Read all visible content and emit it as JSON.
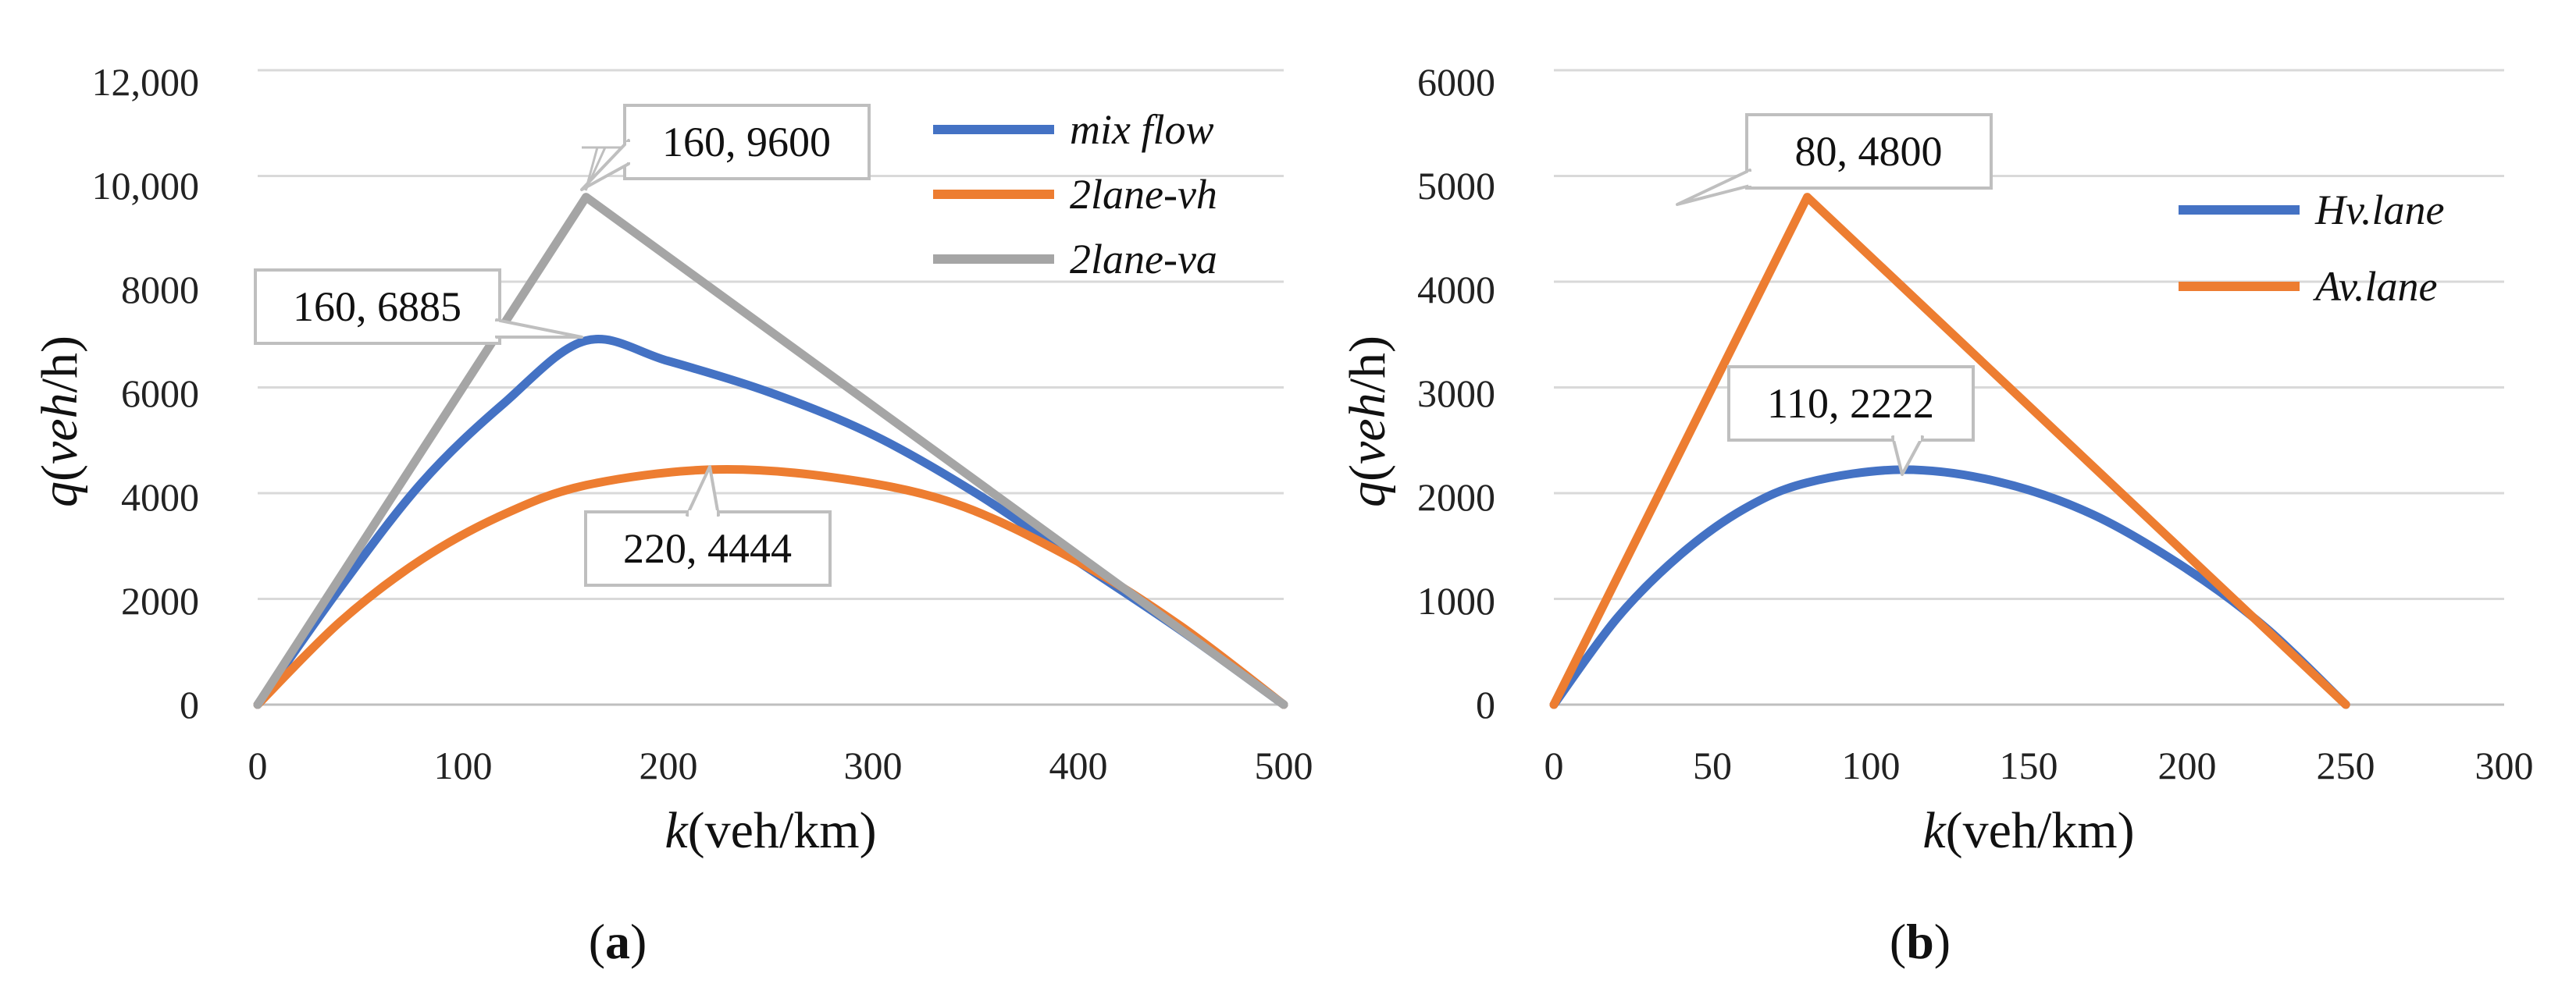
{
  "chart_data": [
    {
      "type": "line",
      "panel_label": "a",
      "xlabel": {
        "var": "k",
        "unit": "(veh/km)"
      },
      "ylabel": {
        "var": "q",
        "open": "(",
        "italic_part": "veh",
        "unit": "/h)"
      },
      "xlim": [
        0,
        500
      ],
      "ylim": [
        0,
        12000
      ],
      "x_ticks": [
        0,
        100,
        200,
        300,
        400,
        500
      ],
      "y_ticks": [
        0,
        2000,
        4000,
        6000,
        8000,
        10000,
        12000
      ],
      "x_tick_labels": [
        "0",
        "100",
        "200",
        "300",
        "400",
        "500"
      ],
      "y_tick_labels": [
        "0",
        "2000",
        "4000",
        "6000",
        "8000",
        "10,000",
        "12,000"
      ],
      "grid": "horizontal",
      "legend_position": "top-right",
      "series": [
        {
          "name": "mix flow",
          "color": "#4472C4",
          "x": [
            0,
            40,
            80,
            120,
            160,
            200,
            250,
            300,
            350,
            400,
            450,
            500
          ],
          "y": [
            0,
            2200,
            4200,
            5700,
            6885,
            6500,
            5900,
            5100,
            4000,
            2700,
            1400,
            0
          ]
        },
        {
          "name": "2lane-vh",
          "color": "#ED7D31",
          "x": [
            0,
            40,
            80,
            120,
            160,
            220,
            280,
            340,
            400,
            450,
            500
          ],
          "y": [
            0,
            1560,
            2750,
            3600,
            4150,
            4444,
            4300,
            3800,
            2700,
            1480,
            0
          ]
        },
        {
          "name": "2lane-va",
          "color": "#A5A5A5",
          "x": [
            0,
            160,
            500
          ],
          "y": [
            0,
            9600,
            0
          ]
        }
      ],
      "annotations": [
        {
          "text": "160, 9600",
          "x": 160,
          "y": 9600
        },
        {
          "text": "160, 6885",
          "x": 160,
          "y": 6885
        },
        {
          "text": "220, 4444",
          "x": 220,
          "y": 4444
        }
      ]
    },
    {
      "type": "line",
      "panel_label": "b",
      "xlabel": {
        "var": "k",
        "unit": "(veh/km)"
      },
      "ylabel": {
        "var": "q",
        "open": "(",
        "italic_part": "veh",
        "unit": "/h)"
      },
      "xlim": [
        0,
        300
      ],
      "ylim": [
        0,
        6000
      ],
      "x_ticks": [
        0,
        50,
        100,
        150,
        200,
        250,
        300
      ],
      "y_ticks": [
        0,
        1000,
        2000,
        3000,
        4000,
        5000,
        6000
      ],
      "x_tick_labels": [
        "0",
        "50",
        "100",
        "150",
        "200",
        "250",
        "300"
      ],
      "y_tick_labels": [
        "0",
        "1000",
        "2000",
        "3000",
        "4000",
        "5000",
        "6000"
      ],
      "grid": "horizontal",
      "legend_position": "top-right",
      "series": [
        {
          "name": "Hv.lane",
          "color": "#4472C4",
          "x": [
            0,
            20,
            40,
            60,
            80,
            110,
            140,
            170,
            200,
            225,
            250
          ],
          "y": [
            0,
            820,
            1420,
            1850,
            2100,
            2222,
            2110,
            1800,
            1280,
            720,
            0
          ]
        },
        {
          "name": "Av.lane",
          "color": "#ED7D31",
          "x": [
            0,
            80,
            250
          ],
          "y": [
            0,
            4800,
            0
          ]
        }
      ],
      "annotations": [
        {
          "text": "80, 4800",
          "x": 80,
          "y": 4800
        },
        {
          "text": "110, 2222",
          "x": 110,
          "y": 2222
        }
      ]
    }
  ]
}
